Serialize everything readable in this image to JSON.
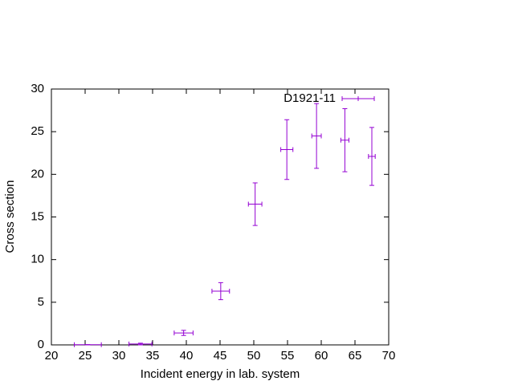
{
  "chart_data": {
    "type": "errorbar",
    "xlabel": "Incident energy in lab. system",
    "ylabel": "Cross section",
    "xlim": [
      20,
      70
    ],
    "xticks": [
      20,
      25,
      30,
      35,
      40,
      45,
      50,
      55,
      60,
      65,
      70
    ],
    "ylim": [
      0,
      30
    ],
    "yticks": [
      0,
      5,
      10,
      15,
      20,
      25,
      30
    ],
    "legend": "top-right",
    "series": [
      {
        "name": "D1921-11",
        "color": "#9400d3",
        "x": [
          25.4,
          33.2,
          39.6,
          45.1,
          50.2,
          54.9,
          59.3,
          63.5,
          67.5
        ],
        "xerr": [
          2.0,
          1.7,
          1.4,
          1.3,
          1.0,
          0.9,
          0.7,
          0.6,
          0.5
        ],
        "values": [
          0.02,
          0.1,
          1.4,
          6.3,
          16.5,
          22.9,
          24.5,
          24.0,
          22.1
        ],
        "yerr": [
          0.02,
          0.1,
          0.3,
          1.0,
          2.5,
          3.5,
          3.8,
          3.7,
          3.4
        ]
      }
    ]
  }
}
